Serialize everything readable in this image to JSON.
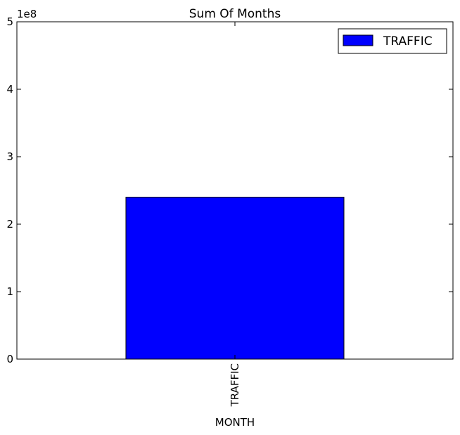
{
  "chart_data": {
    "type": "bar",
    "title": "Sum Of Months",
    "xlabel": "MONTH",
    "ylabel": "",
    "categories": [
      "TRAFFIC"
    ],
    "series": [
      {
        "name": "TRAFFIC",
        "values": [
          240000000
        ],
        "color": "#0000ff"
      }
    ],
    "ylim": [
      0,
      500000000
    ],
    "y_ticks": [
      "0",
      "1",
      "2",
      "3",
      "4",
      "5"
    ],
    "y_offset_label": "1e8",
    "legend_position": "upper right",
    "grid": false
  }
}
